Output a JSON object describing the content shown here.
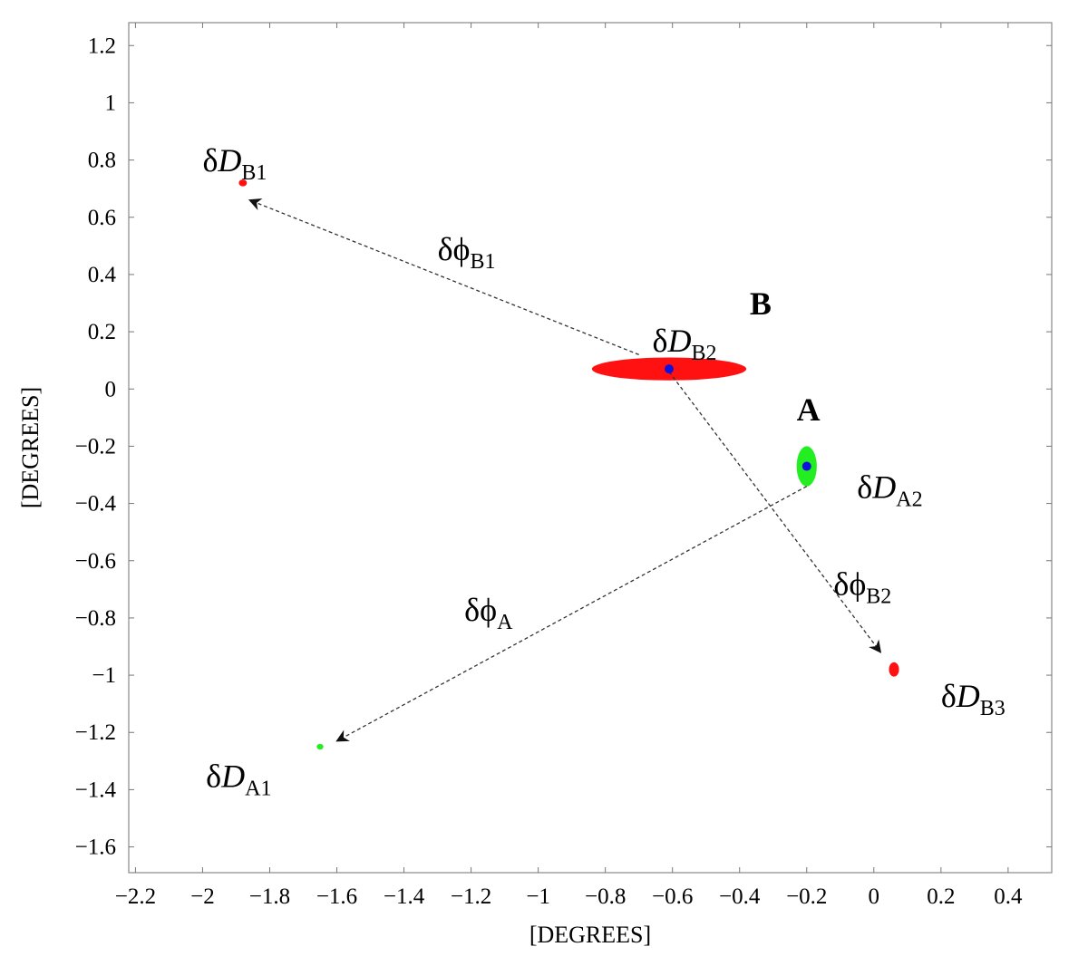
{
  "chart_data": {
    "type": "scatter",
    "xlabel": "[DEGREES]",
    "ylabel": "[DEGREES]",
    "xlim": [
      -2.22,
      0.53
    ],
    "ylim": [
      -1.69,
      1.28
    ],
    "xticks": [
      -2.2,
      -2.0,
      -1.8,
      -1.6,
      -1.4,
      -1.2,
      -1.0,
      -0.8,
      -0.6,
      -0.4,
      -0.2,
      0.0,
      0.2,
      0.4
    ],
    "xtick_labels": [
      "−2.2",
      "−2",
      "−1.8",
      "−1.6",
      "−1.4",
      "−1.2",
      "−1",
      "−0.8",
      "−0.6",
      "−0.4",
      "−0.2",
      "0",
      "0.2",
      "0.4"
    ],
    "yticks": [
      1.2,
      1.0,
      0.8,
      0.6,
      0.4,
      0.2,
      0.0,
      -0.2,
      -0.4,
      -0.6,
      -0.8,
      -1.0,
      -1.2,
      -1.4,
      -1.6
    ],
    "ytick_labels": [
      "1.2",
      "1",
      "0.8",
      "0.6",
      "0.4",
      "0.2",
      "0",
      "−0.2",
      "−0.4",
      "−0.6",
      "−0.8",
      "−1",
      "−1.2",
      "−1.4",
      "−1.6"
    ],
    "grid": false,
    "colors": {
      "regionB": "#ff1111",
      "regionA": "#22ee22",
      "centers": "#1111dd",
      "arrows": "#333333"
    },
    "regions": [
      {
        "id": "B2",
        "color": "red",
        "cx": -0.61,
        "cy": 0.07,
        "rx": 0.23,
        "ry": 0.04
      },
      {
        "id": "A2",
        "color": "green",
        "cx": -0.2,
        "cy": -0.27,
        "rx": 0.03,
        "ry": 0.07
      },
      {
        "id": "B1",
        "color": "red",
        "cx": -1.88,
        "cy": 0.72,
        "rx": 0.012,
        "ry": 0.012
      },
      {
        "id": "B3",
        "color": "red",
        "cx": 0.06,
        "cy": -0.98,
        "rx": 0.015,
        "ry": 0.025
      },
      {
        "id": "A1",
        "color": "green",
        "cx": -1.65,
        "cy": -1.25,
        "rx": 0.01,
        "ry": 0.01
      }
    ],
    "centers": [
      {
        "x": -0.61,
        "y": 0.07
      },
      {
        "x": -0.2,
        "y": -0.27
      }
    ],
    "arrows": [
      {
        "from": [
          -0.7,
          0.12
        ],
        "to": [
          -1.86,
          0.66
        ]
      },
      {
        "from": [
          -0.61,
          0.06
        ],
        "to": [
          0.02,
          -0.92
        ]
      },
      {
        "from": [
          -0.2,
          -0.34
        ],
        "to": [
          -1.6,
          -1.23
        ]
      }
    ],
    "annotations": [
      {
        "main": "δD",
        "sub": "B1",
        "x": -2.0,
        "y": 0.76,
        "italic": true
      },
      {
        "main": "δϕ",
        "sub": "B1",
        "x": -1.3,
        "y": 0.45,
        "italic": false
      },
      {
        "main": "B",
        "sub": "",
        "x": -0.37,
        "y": 0.26,
        "bold": true
      },
      {
        "main": "δD",
        "sub": "B2",
        "x": -0.66,
        "y": 0.13,
        "italic": true
      },
      {
        "main": "A",
        "sub": "",
        "x": -0.23,
        "y": -0.11,
        "bold": true
      },
      {
        "main": "δD",
        "sub": "A2",
        "x": -0.05,
        "y": -0.38,
        "italic": true
      },
      {
        "main": "δϕ",
        "sub": "B2",
        "x": -0.12,
        "y": -0.72,
        "italic": false
      },
      {
        "main": "δϕ",
        "sub": "A",
        "x": -1.22,
        "y": -0.81,
        "italic": false
      },
      {
        "main": "δD",
        "sub": "B3",
        "x": 0.2,
        "y": -1.11,
        "italic": true
      },
      {
        "main": "δD",
        "sub": "A1",
        "x": -1.99,
        "y": -1.39,
        "italic": true
      }
    ]
  }
}
